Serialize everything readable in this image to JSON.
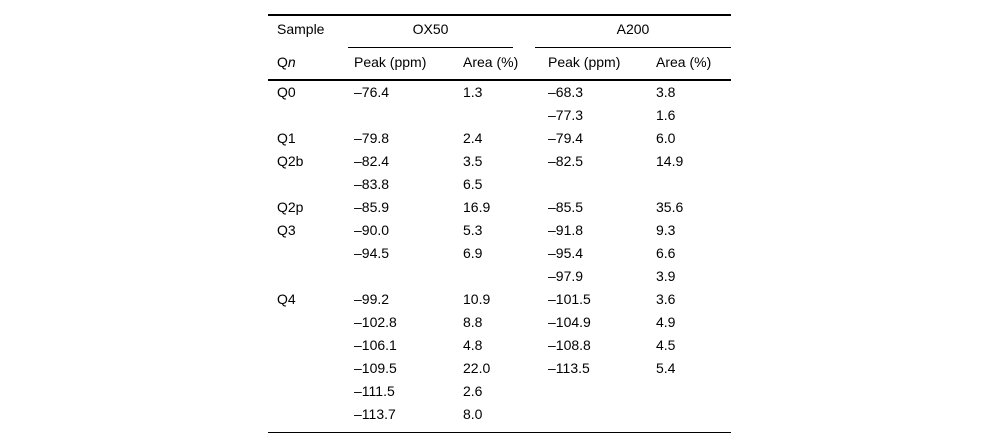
{
  "table": {
    "header": {
      "sample_label": "Sample",
      "group_ox50": "OX50",
      "group_a200": "A200",
      "qn_q": "Q",
      "qn_n": "n",
      "ox50_peak": "Peak (ppm)",
      "ox50_area": "Area (%)",
      "a200_peak": "Peak (ppm)",
      "a200_area": "Area (%)"
    },
    "rows": [
      {
        "qn": "Q0",
        "p1": "–76.4",
        "a1": "1.3",
        "p2": "–68.3",
        "a2": "3.8"
      },
      {
        "qn": "",
        "p1": "",
        "a1": "",
        "p2": "–77.3",
        "a2": "1.6"
      },
      {
        "qn": "Q1",
        "p1": "–79.8",
        "a1": "2.4",
        "p2": "–79.4",
        "a2": "6.0"
      },
      {
        "qn": "Q2b",
        "p1": "–82.4",
        "a1": "3.5",
        "p2": "–82.5",
        "a2": "14.9"
      },
      {
        "qn": "",
        "p1": "–83.8",
        "a1": "6.5",
        "p2": "",
        "a2": ""
      },
      {
        "qn": "Q2p",
        "p1": "–85.9",
        "a1": "16.9",
        "p2": "–85.5",
        "a2": "35.6"
      },
      {
        "qn": "Q3",
        "p1": "–90.0",
        "a1": "5.3",
        "p2": "–91.8",
        "a2": "9.3"
      },
      {
        "qn": "",
        "p1": "–94.5",
        "a1": "6.9",
        "p2": "–95.4",
        "a2": "6.6"
      },
      {
        "qn": "",
        "p1": "",
        "a1": "",
        "p2": "–97.9",
        "a2": "3.9"
      },
      {
        "qn": "Q4",
        "p1": "–99.2",
        "a1": "10.9",
        "p2": "–101.5",
        "a2": "3.6"
      },
      {
        "qn": "",
        "p1": "–102.8",
        "a1": "8.8",
        "p2": "–104.9",
        "a2": "4.9"
      },
      {
        "qn": "",
        "p1": "–106.1",
        "a1": "4.8",
        "p2": "–108.8",
        "a2": "4.5"
      },
      {
        "qn": "",
        "p1": "–109.5",
        "a1": "22.0",
        "p2": "–113.5",
        "a2": "5.4"
      },
      {
        "qn": "",
        "p1": "–111.5",
        "a1": "2.6",
        "p2": "",
        "a2": ""
      },
      {
        "qn": "",
        "p1": "–113.7",
        "a1": "8.0",
        "p2": "",
        "a2": ""
      }
    ]
  },
  "colors": {
    "text": "#000000",
    "rule": "#000000",
    "background": "#ffffff"
  }
}
